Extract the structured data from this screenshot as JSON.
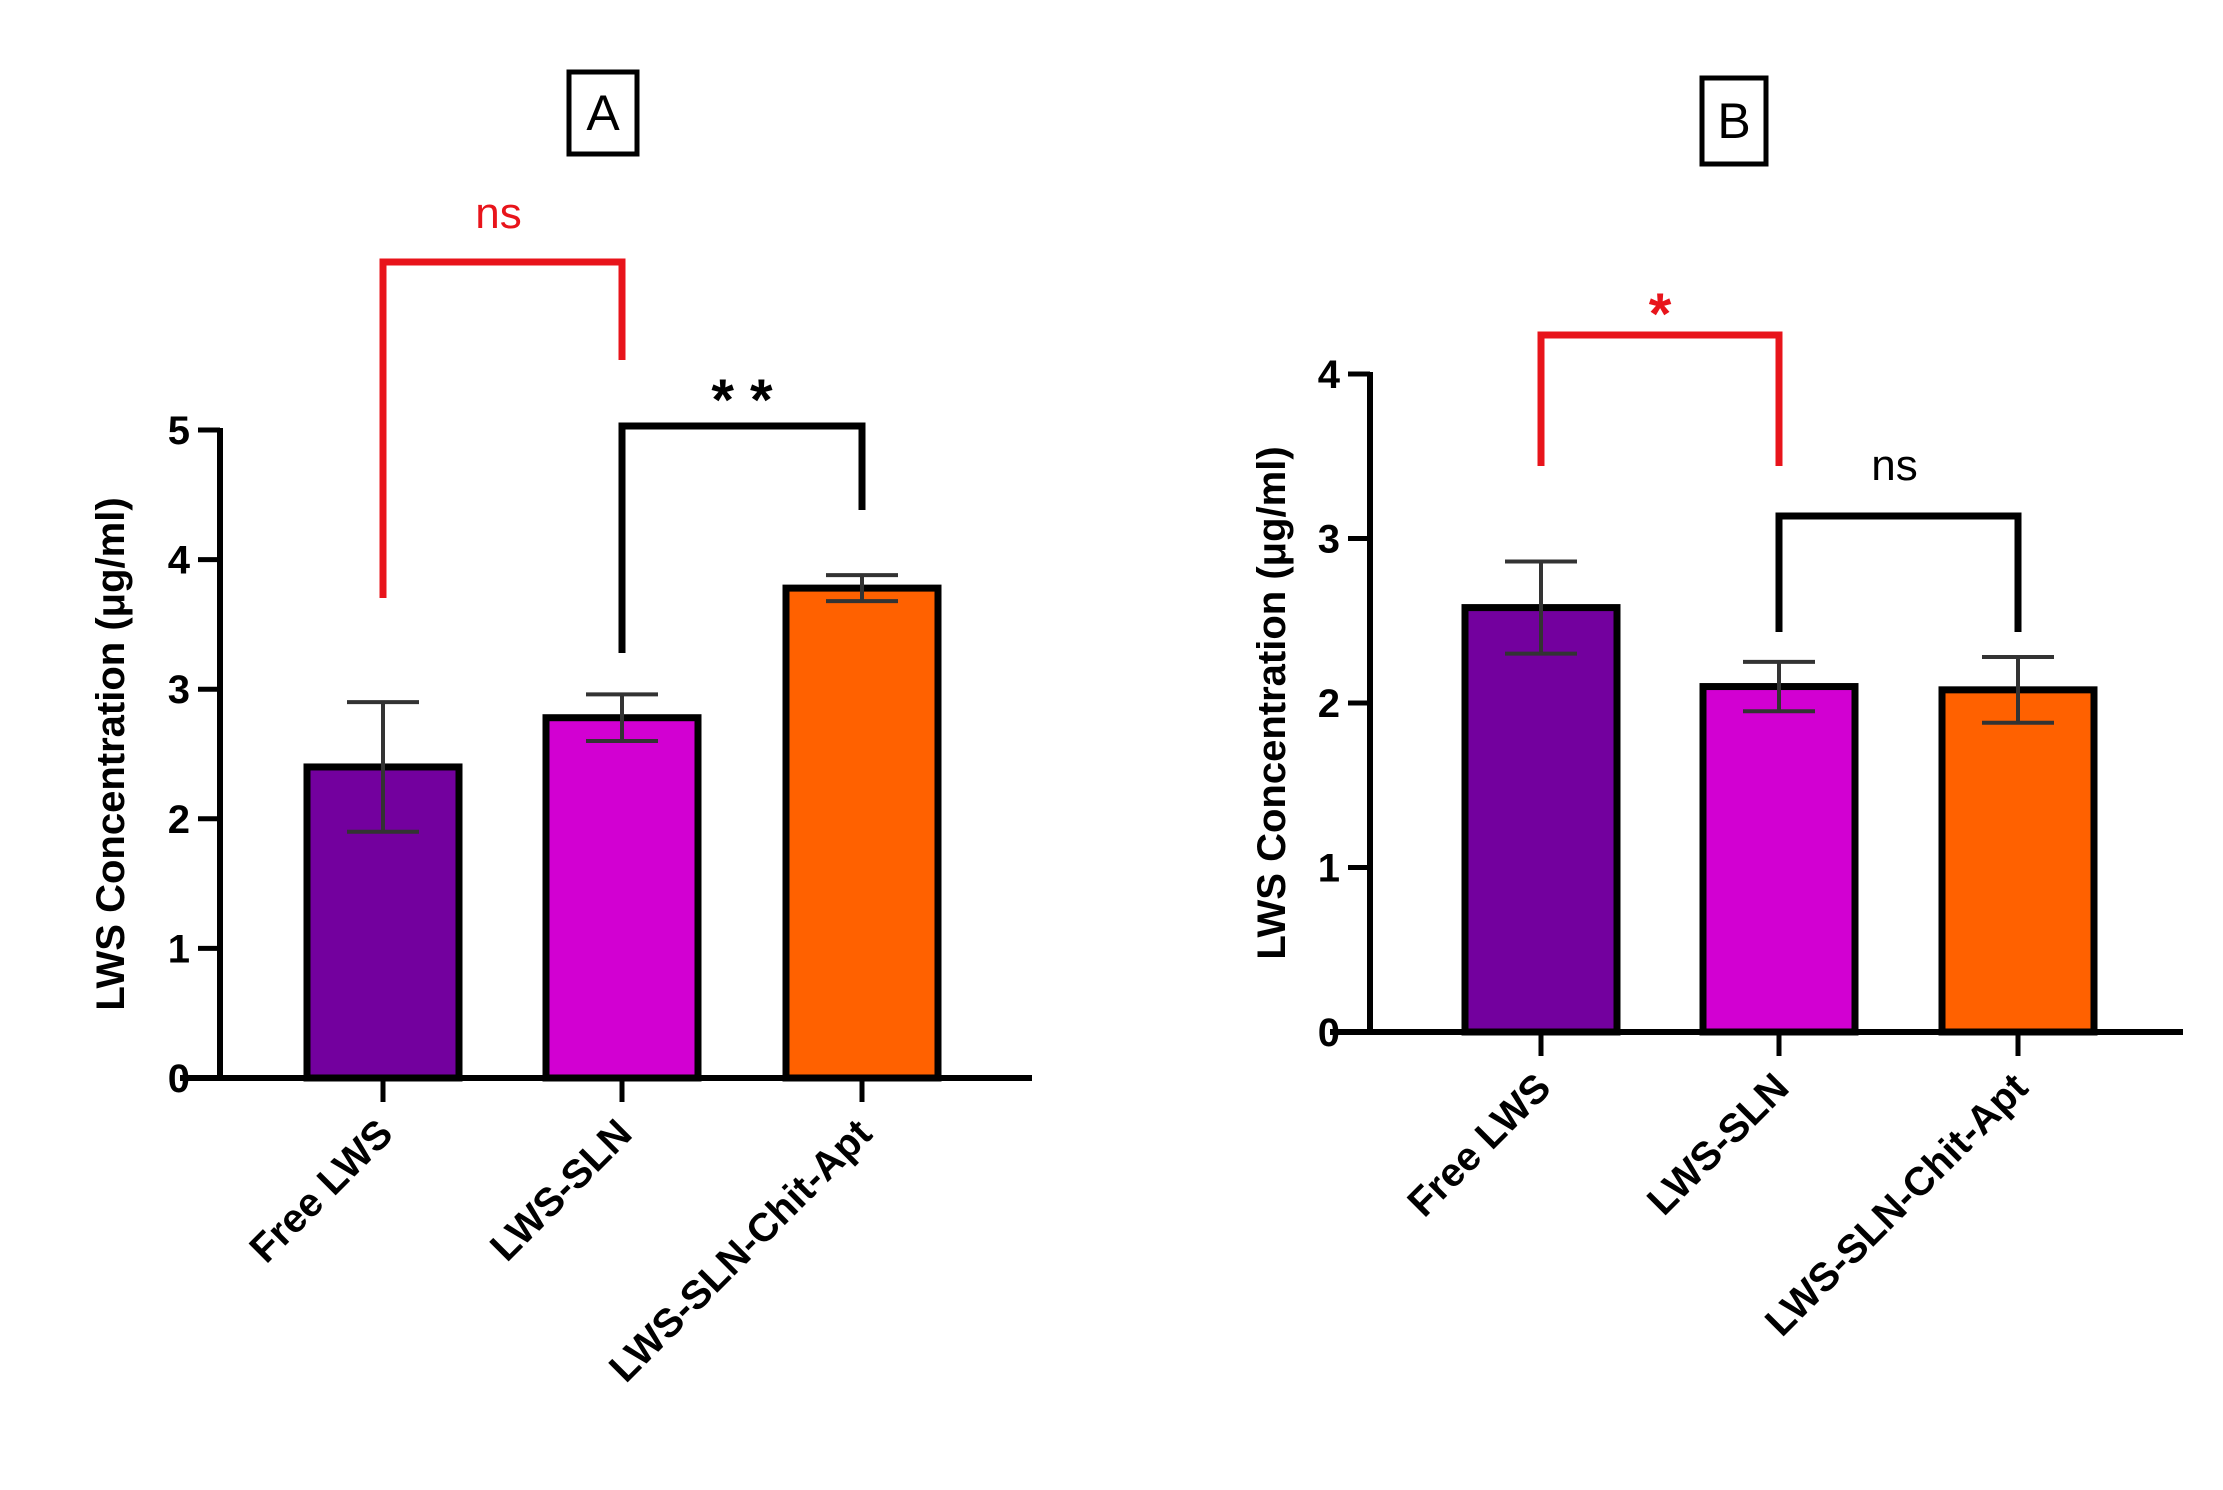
{
  "colors": {
    "free_lws": "#73009e",
    "lws_sln": "#d200d2",
    "lws_sln_chit_apt": "#ff6100",
    "significance_red": "#e8141b",
    "significance_black": "#000000"
  },
  "chart_data": [
    {
      "type": "bar",
      "panel": "A",
      "title": "",
      "ylabel": "LWS Concentration (μg/ml)",
      "xlabel": "",
      "ylim": [
        0,
        5
      ],
      "yticks": [
        0,
        1,
        2,
        3,
        4,
        5
      ],
      "categories": [
        "Free LWS",
        "LWS-SLN",
        "LWS-SLN-Chit-Apt"
      ],
      "values": [
        2.4,
        2.78,
        3.78
      ],
      "error": [
        0.5,
        0.18,
        0.1
      ],
      "significance": [
        {
          "from": 0,
          "to": 1,
          "label": "ns",
          "color": "red"
        },
        {
          "from": 1,
          "to": 2,
          "label": "**",
          "color": "black"
        }
      ]
    },
    {
      "type": "bar",
      "panel": "B",
      "title": "",
      "ylabel": "LWS Concentration (μg/ml)",
      "xlabel": "",
      "ylim": [
        0,
        4
      ],
      "yticks": [
        0,
        1,
        2,
        3,
        4
      ],
      "categories": [
        "Free LWS",
        "LWS-SLN",
        "LWS-SLN-Chit-Apt"
      ],
      "values": [
        2.58,
        2.1,
        2.08
      ],
      "error": [
        0.28,
        0.15,
        0.2
      ],
      "significance": [
        {
          "from": 0,
          "to": 1,
          "label": "*",
          "color": "red"
        },
        {
          "from": 1,
          "to": 2,
          "label": "ns",
          "color": "black"
        }
      ]
    }
  ]
}
